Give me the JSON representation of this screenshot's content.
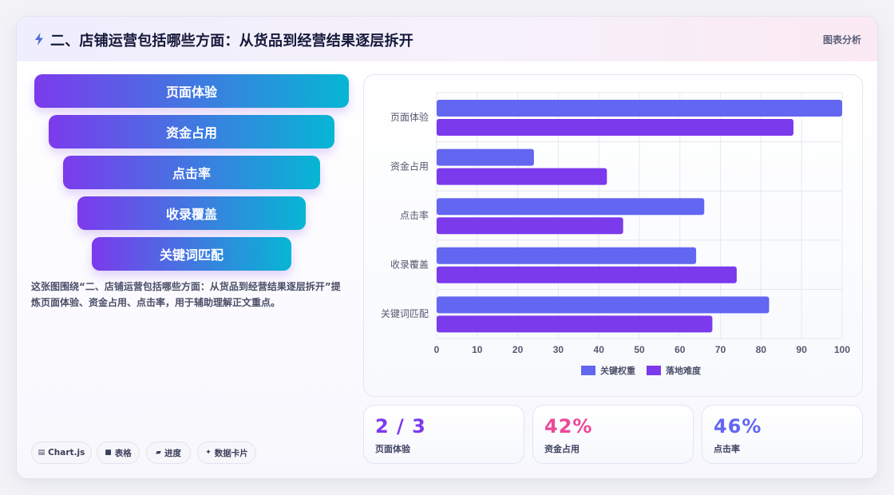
{
  "header": {
    "title": "二、店铺运营包括哪些方面：从货品到经营结果逐层拆开",
    "tag": "图表分析"
  },
  "funnel": {
    "steps": [
      "页面体验",
      "资金占用",
      "点击率",
      "收录覆盖",
      "关键词匹配"
    ]
  },
  "description": "这张图围绕“二、店铺运营包括哪些方面：从货品到经营结果逐层拆开”提炼页面体验、资金占用、点击率，用于辅助理解正文重点。",
  "chips": [
    {
      "icon": "▤",
      "label": "Chart.js"
    },
    {
      "icon": "■",
      "label": "表格"
    },
    {
      "icon": "▰",
      "label": "进度"
    },
    {
      "icon": "✦",
      "label": "数据卡片"
    }
  ],
  "kpis": [
    {
      "value": "2 / 3",
      "label": "页面体验",
      "color": "#7c3aed"
    },
    {
      "value": "42%",
      "label": "资金占用",
      "color": "#ec4899"
    },
    {
      "value": "46%",
      "label": "点击率",
      "color": "#6366f1"
    }
  ],
  "chart_data": {
    "type": "bar",
    "orientation": "horizontal",
    "categories": [
      "页面体验",
      "资金占用",
      "点击率",
      "收录覆盖",
      "关键词匹配"
    ],
    "series": [
      {
        "name": "关键权重",
        "color": "#6366f1",
        "values": [
          100,
          24,
          66,
          64,
          82
        ]
      },
      {
        "name": "落地难度",
        "color": "#7c3aed",
        "values": [
          88,
          42,
          46,
          74,
          68
        ]
      }
    ],
    "xlim": [
      0,
      100
    ],
    "xticks": [
      0,
      10,
      20,
      30,
      40,
      50,
      60,
      70,
      80,
      90,
      100
    ],
    "grid": true,
    "legend": "bottom"
  }
}
